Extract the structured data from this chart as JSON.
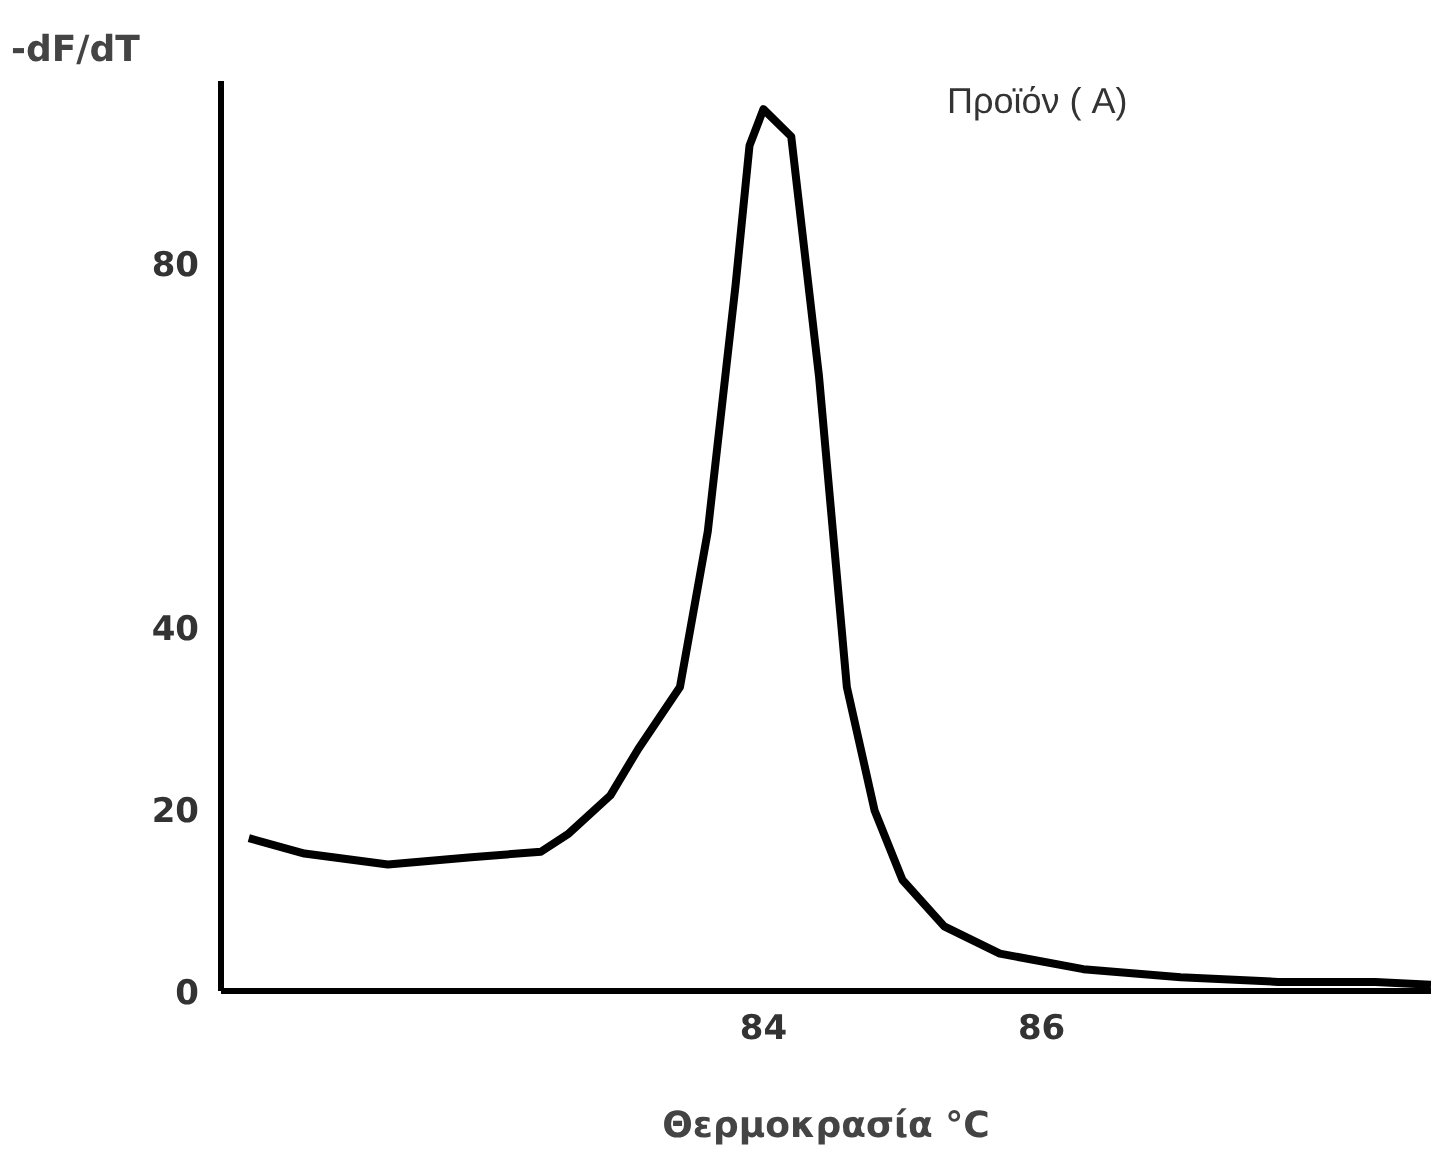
{
  "chart_data": {
    "type": "line",
    "xlabel": "Θερμοκρασία °C",
    "ylabel": "-dF/dT",
    "annotations": [
      "Προϊόν ( A)"
    ],
    "x": [
      80.3,
      80.7,
      81.3,
      81.9,
      82.4,
      82.6,
      82.9,
      83.1,
      83.4,
      83.6,
      83.8,
      83.9,
      84.0,
      84.2,
      84.4,
      84.6,
      84.8,
      85.0,
      85.3,
      85.7,
      86.3,
      87.0,
      87.7,
      88.4,
      88.8
    ],
    "series": [
      {
        "color": "#000000",
        "values": [
          16.8,
          15.1,
          13.9,
          14.7,
          15.3,
          17.3,
          21.5,
          26.6,
          33.4,
          50.5,
          77.6,
          92.9,
          96.9,
          93.9,
          67.5,
          33.4,
          19.8,
          12.2,
          7.1,
          4.1,
          2.4,
          1.5,
          1.0,
          1.0,
          0.7
        ]
      }
    ],
    "xlim": [
      80.1,
      88.8
    ],
    "ylim": [
      0,
      100
    ],
    "xticks": [
      84,
      86
    ],
    "yticks": [
      0,
      20,
      40,
      80
    ],
    "grid": false,
    "marker": "none",
    "line_style": "solid"
  }
}
